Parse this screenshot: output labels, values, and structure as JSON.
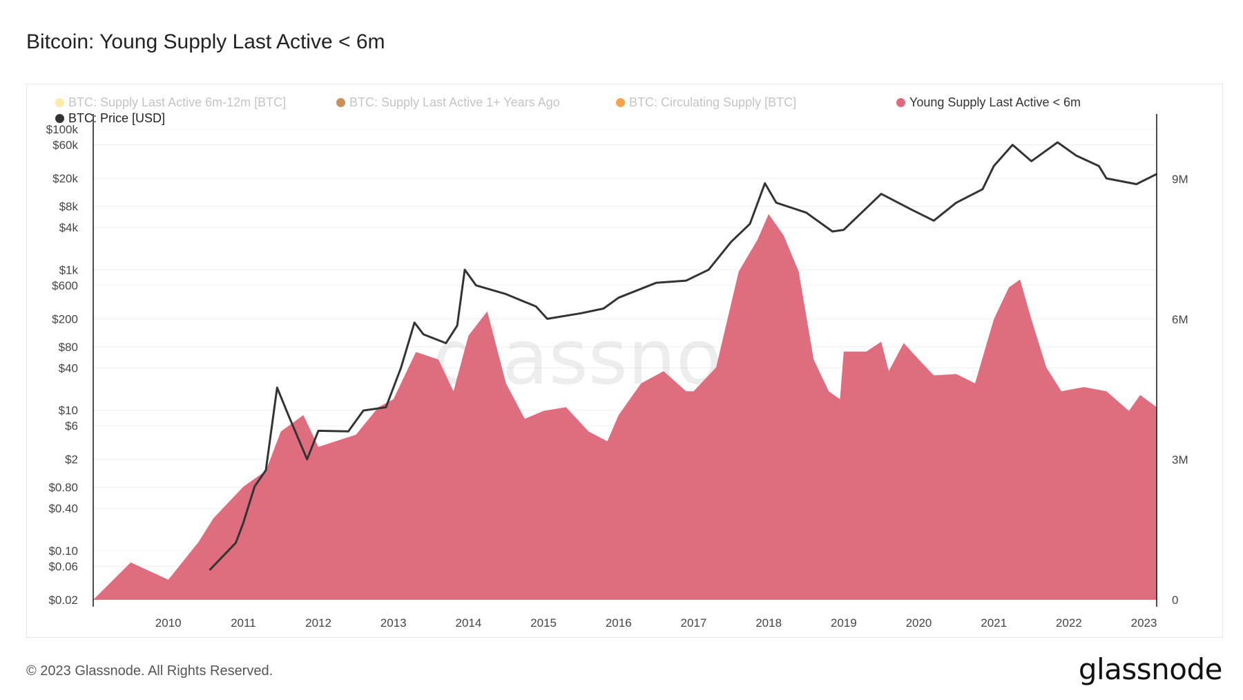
{
  "title": "Bitcoin: Young Supply Last Active < 6m",
  "footer": "© 2023 Glassnode. All Rights Reserved.",
  "logo_text": "glassnode",
  "watermark": "glassnode",
  "legend": [
    {
      "label": "BTC: Supply Last Active 6m-12m [BTC]",
      "color": "#fde9a8",
      "active": false
    },
    {
      "label": "BTC: Supply Last Active 1+ Years Ago",
      "color": "#c98f5b",
      "active": false
    },
    {
      "label": "BTC: Circulating Supply [BTC]",
      "color": "#f7a24a",
      "active": false
    },
    {
      "label": "Young Supply Last Active < 6m",
      "color": "#dd6b7b",
      "active": true
    },
    {
      "label": "BTC: Price [USD]",
      "color": "#333333",
      "active": true
    }
  ],
  "chart_data": {
    "type": "area+line",
    "title": "Bitcoin: Young Supply Last Active < 6m",
    "xlim": [
      2009.0,
      2023.17
    ],
    "x_ticks": [
      "2010",
      "2011",
      "2012",
      "2013",
      "2014",
      "2015",
      "2016",
      "2017",
      "2018",
      "2019",
      "2020",
      "2021",
      "2022",
      "2023"
    ],
    "y_left": {
      "scale": "log",
      "range": [
        0.02,
        100000
      ],
      "ticks": [
        {
          "label": "$100k",
          "value": 100000
        },
        {
          "label": "$60k",
          "value": 60000
        },
        {
          "label": "$20k",
          "value": 20000
        },
        {
          "label": "$8k",
          "value": 8000
        },
        {
          "label": "$4k",
          "value": 4000
        },
        {
          "label": "$1k",
          "value": 1000
        },
        {
          "label": "$600",
          "value": 600
        },
        {
          "label": "$200",
          "value": 200
        },
        {
          "label": "$80",
          "value": 80
        },
        {
          "label": "$40",
          "value": 40
        },
        {
          "label": "$10",
          "value": 10
        },
        {
          "label": "$6",
          "value": 6
        },
        {
          "label": "$2",
          "value": 2
        },
        {
          "label": "$0.80",
          "value": 0.8
        },
        {
          "label": "$0.40",
          "value": 0.4
        },
        {
          "label": "$0.10",
          "value": 0.1
        },
        {
          "label": "$0.06",
          "value": 0.06
        },
        {
          "label": "$0.02",
          "value": 0.02
        }
      ]
    },
    "y_right": {
      "scale": "linear",
      "range": [
        0,
        10500000
      ],
      "ticks": [
        {
          "label": "0",
          "value": 0
        },
        {
          "label": "3M",
          "value": 3000000
        },
        {
          "label": "6M",
          "value": 6000000
        },
        {
          "label": "9M",
          "value": 9000000
        }
      ]
    },
    "grid": true,
    "legend_position": "top",
    "series": [
      {
        "name": "Young Supply Last Active < 6m",
        "axis": "right",
        "type": "area",
        "color": "#dd6b7b",
        "x": [
          2009.0,
          2009.5,
          2010.0,
          2010.4,
          2010.6,
          2011.0,
          2011.3,
          2011.5,
          2011.8,
          2012.0,
          2012.5,
          2012.8,
          2013.0,
          2013.3,
          2013.6,
          2013.8,
          2014.0,
          2014.25,
          2014.5,
          2014.75,
          2015.0,
          2015.3,
          2015.6,
          2015.85,
          2016.0,
          2016.3,
          2016.6,
          2016.9,
          2017.0,
          2017.3,
          2017.6,
          2017.85,
          2018.0,
          2018.2,
          2018.4,
          2018.6,
          2018.8,
          2018.95,
          2019.0,
          2019.3,
          2019.5,
          2019.6,
          2019.8,
          2020.0,
          2020.2,
          2020.5,
          2020.75,
          2021.0,
          2021.2,
          2021.35,
          2021.5,
          2021.7,
          2021.9,
          2022.2,
          2022.5,
          2022.8,
          2022.95,
          2023.17
        ],
        "y": [
          0,
          800000,
          430000,
          1230000,
          1740000,
          2420000,
          2760000,
          3600000,
          3950000,
          3270000,
          3530000,
          4120000,
          4290000,
          5300000,
          5140000,
          4460000,
          5650000,
          6170000,
          4630000,
          3870000,
          4040000,
          4120000,
          3600000,
          3390000,
          3950000,
          4630000,
          4890000,
          4460000,
          4460000,
          4970000,
          7020000,
          7700000,
          8250000,
          7790000,
          7020000,
          5140000,
          4460000,
          4290000,
          5310000,
          5310000,
          5520000,
          4890000,
          5490000,
          5140000,
          4800000,
          4830000,
          4630000,
          6000000,
          6680000,
          6850000,
          6000000,
          4970000,
          4460000,
          4550000,
          4460000,
          4040000,
          4380000,
          4120000
        ]
      },
      {
        "name": "BTC: Price [USD]",
        "axis": "left",
        "type": "line",
        "color": "#333333",
        "x": [
          2010.55,
          2010.9,
          2011.0,
          2011.15,
          2011.3,
          2011.45,
          2011.6,
          2011.85,
          2012.0,
          2012.4,
          2012.6,
          2012.9,
          2013.1,
          2013.28,
          2013.4,
          2013.7,
          2013.85,
          2013.95,
          2014.1,
          2014.5,
          2014.9,
          2015.05,
          2015.5,
          2015.8,
          2016.0,
          2016.5,
          2016.9,
          2017.2,
          2017.5,
          2017.75,
          2017.95,
          2018.1,
          2018.5,
          2018.85,
          2019.0,
          2019.5,
          2019.9,
          2020.2,
          2020.5,
          2020.85,
          2021.0,
          2021.25,
          2021.5,
          2021.85,
          2022.1,
          2022.4,
          2022.5,
          2022.9,
          2023.17
        ],
        "y": [
          0.053,
          0.13,
          0.25,
          0.82,
          1.4,
          21,
          8.5,
          2.0,
          5.1,
          5.0,
          9.9,
          11,
          40,
          177,
          120,
          90,
          160,
          1000,
          600,
          450,
          300,
          200,
          240,
          280,
          400,
          650,
          700,
          1000,
          2500,
          4500,
          17000,
          9000,
          6500,
          3500,
          3700,
          12000,
          7200,
          5000,
          9000,
          14000,
          30000,
          60000,
          35000,
          65000,
          42000,
          30000,
          20000,
          16500,
          23000
        ]
      }
    ]
  }
}
